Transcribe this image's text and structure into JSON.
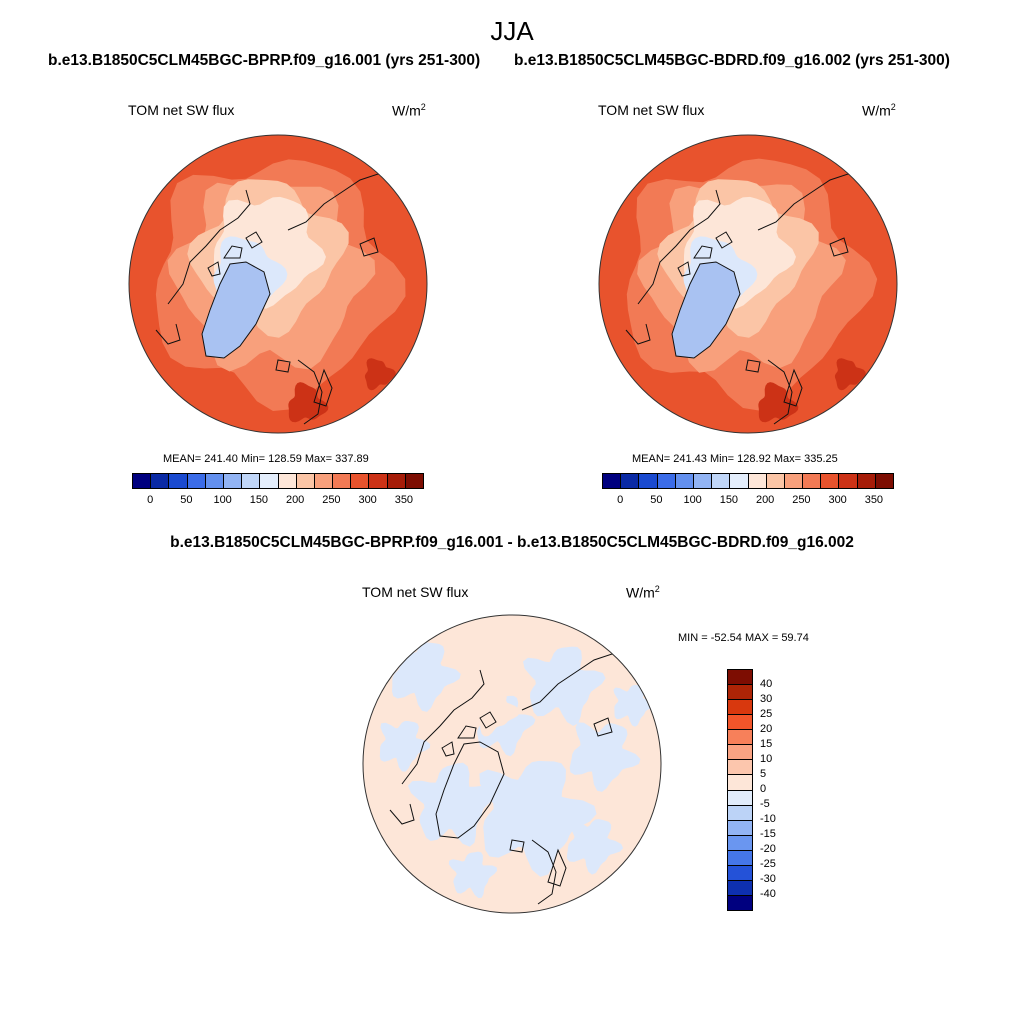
{
  "season": "JJA",
  "panels": [
    {
      "case": "b.e13.B1850C5CLM45BGC-BPRP.f09_g16.001 (yrs 251-300)",
      "variable": "TOM net SW flux",
      "units": "W/m",
      "units_exp": "2",
      "stats": "MEAN= 241.40  Min= 128.59  Max= 337.89"
    },
    {
      "case": "b.e13.B1850C5CLM45BGC-BDRD.f09_g16.002 (yrs 251-300)",
      "variable": "TOM net SW flux",
      "units": "W/m",
      "units_exp": "2",
      "stats": "MEAN= 241.43  Min= 128.92  Max= 335.25"
    }
  ],
  "field_colorbar": {
    "ticks": [
      "0",
      "50",
      "100",
      "150",
      "200",
      "250",
      "300",
      "350"
    ],
    "colors": [
      "#00007f",
      "#0a2aa5",
      "#1a4ad0",
      "#3b6ce8",
      "#6390ef",
      "#92b4f4",
      "#c0d6f8",
      "#e4eefc",
      "#fde6d8",
      "#fbc5a6",
      "#f8a07c",
      "#f27a55",
      "#e8532d",
      "#cc3216",
      "#a61c08",
      "#7d0d02"
    ]
  },
  "diff": {
    "title": "b.e13.B1850C5CLM45BGC-BPRP.f09_g16.001 - b.e13.B1850C5CLM45BGC-BDRD.f09_g16.002",
    "variable": "TOM net SW flux",
    "units": "W/m",
    "units_exp": "2",
    "stats": "MIN = -52.54 MAX =  59.74"
  },
  "diff_colorbar": {
    "labels": [
      "40",
      "30",
      "25",
      "20",
      "15",
      "10",
      "5",
      "0",
      "-5",
      "-10",
      "-15",
      "-20",
      "-25",
      "-30",
      "-40"
    ],
    "colors": [
      "#7d0d02",
      "#ad2406",
      "#d8380e",
      "#f2552a",
      "#f7805a",
      "#faa383",
      "#fcc6ad",
      "#fde6d8",
      "#e1ecfb",
      "#bcd3f7",
      "#92b4f4",
      "#6a96f0",
      "#4576e9",
      "#2452d8",
      "#0e30b0",
      "#00007f"
    ]
  },
  "map_colors": {
    "outer": "#e8532d",
    "mid": "#f27a55",
    "inner": "#f8a07c",
    "pale": "#fbc5a6",
    "arctic": "#fde6d8",
    "ice_light": "#dce8fb",
    "greenland": "#a9c2f2",
    "hot": "#cc3216",
    "diff_pos": "#fde6d8",
    "diff_neg": "#dce8fb"
  }
}
